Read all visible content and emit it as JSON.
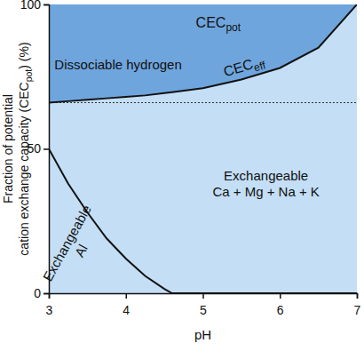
{
  "chart_data": {
    "type": "area",
    "stacked": true,
    "xlabel": "pH",
    "ylabel": [
      [
        "Fraction of potential"
      ],
      [
        "cation exchange capacity (CEC",
        {
          "sub": "pot"
        },
        ") (%)"
      ]
    ],
    "x": [
      3,
      3.25,
      3.5,
      3.75,
      4,
      4.25,
      4.5,
      4.6,
      5,
      5.5,
      6,
      6.5,
      7
    ],
    "xlim": [
      3,
      7
    ],
    "xticks": [
      3,
      4,
      5,
      6,
      7
    ],
    "ylim": [
      0,
      100
    ],
    "yticks": [
      0,
      50,
      100
    ],
    "series": [
      {
        "name": "Exchangeable Al",
        "color": "#c3def5",
        "line_style": "solid",
        "values": [
          50,
          38,
          28,
          19,
          12,
          6,
          1.5,
          0,
          0,
          0,
          0,
          0,
          0
        ]
      },
      {
        "name": "Exchangeable Ca + Mg + Na + K",
        "color": "#c3def5",
        "line_style": "solid",
        "values": [
          16,
          28.5,
          39,
          48.5,
          56,
          62.5,
          67.8,
          69.6,
          71,
          74,
          78,
          85,
          100
        ]
      },
      {
        "name": "Dissociable hydrogen",
        "color": "#6fa5dd",
        "line_style": "none",
        "values": [
          34,
          33.5,
          33,
          32.5,
          32,
          31.5,
          30.7,
          30.4,
          29,
          26,
          22,
          15,
          0
        ]
      }
    ],
    "reference_line": 66,
    "annotations": [
      {
        "text": [
          "CEC",
          {
            "sub": "pot"
          }
        ],
        "x": 5.2,
        "y": 92
      },
      {
        "text": [
          "CEC",
          {
            "sub": "eff"
          }
        ],
        "x": 5.55,
        "y": 77
      }
    ]
  }
}
